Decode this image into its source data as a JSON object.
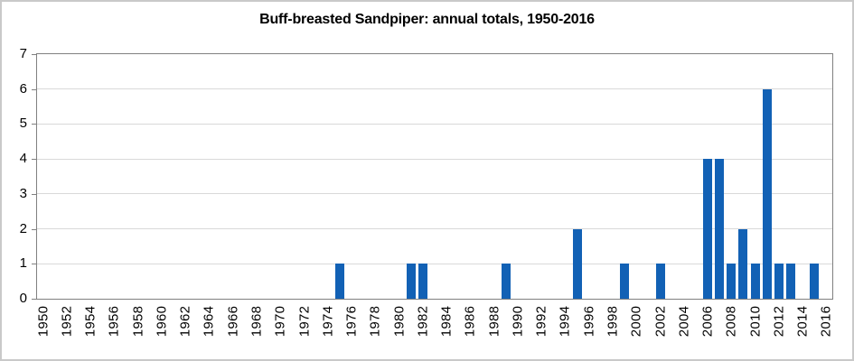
{
  "chart": {
    "background": "#FFFFFF",
    "outer_border_color": "#C9C9C9",
    "plot_border_color": "#808080",
    "gridline_color": "#D9D9D9",
    "text_color": "#000000"
  },
  "chart_data": {
    "type": "bar",
    "title": "Buff-breasted Sandpiper: annual totals, 1950-2016",
    "xlabel": "",
    "ylabel": "",
    "x_start": 1950,
    "x_end": 2016,
    "ylim": [
      0,
      7
    ],
    "y_tick_interval": 1,
    "x_tick_interval": 2,
    "grid": "horizontal",
    "legend_position": "none",
    "bar_color": "#1261B5",
    "categories": [
      1950,
      1951,
      1952,
      1953,
      1954,
      1955,
      1956,
      1957,
      1958,
      1959,
      1960,
      1961,
      1962,
      1963,
      1964,
      1965,
      1966,
      1967,
      1968,
      1969,
      1970,
      1971,
      1972,
      1973,
      1974,
      1975,
      1976,
      1977,
      1978,
      1979,
      1980,
      1981,
      1982,
      1983,
      1984,
      1985,
      1986,
      1987,
      1988,
      1989,
      1990,
      1991,
      1992,
      1993,
      1994,
      1995,
      1996,
      1997,
      1998,
      1999,
      2000,
      2001,
      2002,
      2003,
      2004,
      2005,
      2006,
      2007,
      2008,
      2009,
      2010,
      2011,
      2012,
      2013,
      2014,
      2015,
      2016
    ],
    "values": [
      0,
      0,
      0,
      0,
      0,
      0,
      0,
      0,
      0,
      0,
      0,
      0,
      0,
      0,
      0,
      0,
      0,
      0,
      0,
      0,
      0,
      0,
      0,
      0,
      0,
      1,
      0,
      0,
      0,
      0,
      0,
      1,
      1,
      0,
      0,
      0,
      0,
      0,
      0,
      1,
      0,
      0,
      0,
      0,
      0,
      2,
      0,
      0,
      0,
      1,
      0,
      0,
      1,
      0,
      0,
      0,
      4,
      4,
      1,
      2,
      1,
      6,
      1,
      1,
      0,
      1,
      0
    ],
    "x_tick_labels": [
      "1950",
      "1952",
      "1954",
      "1956",
      "1958",
      "1960",
      "1962",
      "1964",
      "1966",
      "1968",
      "1970",
      "1972",
      "1974",
      "1976",
      "1978",
      "1980",
      "1982",
      "1984",
      "1986",
      "1988",
      "1990",
      "1992",
      "1994",
      "1996",
      "1998",
      "2000",
      "2002",
      "2004",
      "2006",
      "2008",
      "2010",
      "2012",
      "2014",
      "2016"
    ],
    "y_tick_labels": [
      "0",
      "1",
      "2",
      "3",
      "4",
      "5",
      "6",
      "7"
    ]
  }
}
